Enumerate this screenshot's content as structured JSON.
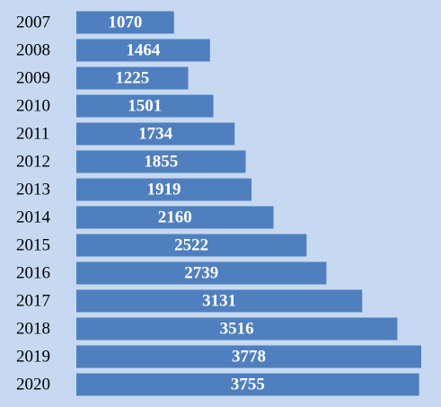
{
  "chart_data": {
    "type": "bar",
    "orientation": "horizontal",
    "categories": [
      "2007",
      "2008",
      "2009",
      "2010",
      "2011",
      "2012",
      "2013",
      "2014",
      "2015",
      "2016",
      "2017",
      "2018",
      "2019",
      "2020"
    ],
    "values": [
      1070,
      1464,
      1225,
      1501,
      1734,
      1855,
      1919,
      2160,
      2522,
      2739,
      3131,
      3516,
      3778,
      3755
    ],
    "color": "#4f7fbe"
  }
}
